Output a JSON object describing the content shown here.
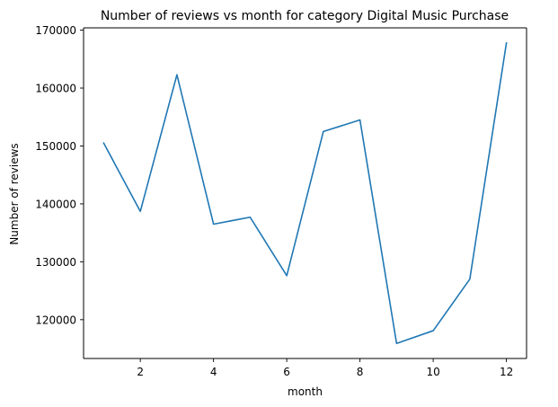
{
  "chart_data": {
    "type": "line",
    "title": "Number of reviews vs month for category Digital Music Purchase",
    "xlabel": "month",
    "ylabel": "Number of reviews",
    "x": [
      1,
      2,
      3,
      4,
      5,
      6,
      7,
      8,
      9,
      10,
      11,
      12
    ],
    "series": [
      {
        "values": [
          150500,
          138700,
          162300,
          136500,
          137700,
          127600,
          152500,
          154500,
          115900,
          118100,
          127000,
          167800
        ],
        "color": "#1f77b4"
      }
    ],
    "xlim": [
      0.45,
      12.55
    ],
    "ylim": [
      113300,
      170400
    ],
    "xticks": [
      2,
      4,
      6,
      8,
      10,
      12
    ],
    "xtick_labels": [
      "2",
      "4",
      "6",
      "8",
      "10",
      "12"
    ],
    "yticks": [
      120000,
      130000,
      140000,
      150000,
      160000,
      170000
    ],
    "ytick_labels": [
      "120000",
      "130000",
      "140000",
      "150000",
      "160000",
      "170000"
    ],
    "grid": false,
    "legend": "none"
  }
}
